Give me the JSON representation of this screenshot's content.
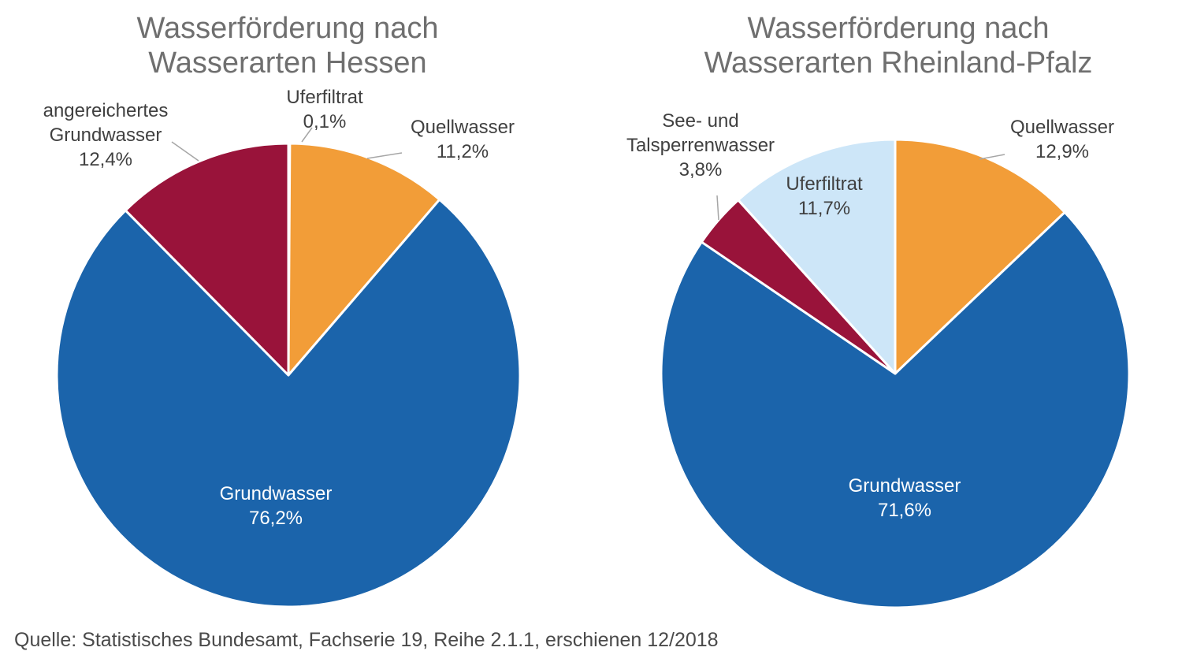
{
  "source_note": "Quelle: Statistisches Bundesamt, Fachserie 19, Reihe 2.1.1, erschienen 12/2018",
  "chart_data": [
    {
      "type": "pie",
      "title": [
        "Wasserförderung nach",
        "Wasserarten Hessen"
      ],
      "slices": [
        {
          "label": [
            "Uferfiltrat"
          ],
          "value": 0.1,
          "value_label": "0,1%",
          "color": "#F29D38"
        },
        {
          "label": [
            "Quellwasser"
          ],
          "value": 11.2,
          "value_label": "11,2%",
          "color": "#F29D38"
        },
        {
          "label": [
            "Grundwasser"
          ],
          "value": 76.2,
          "value_label": "76,2%",
          "color": "#1B64AB"
        },
        {
          "label": [
            "angereichertes",
            "Grundwasser"
          ],
          "value": 12.4,
          "value_label": "12,4%",
          "color": "#99133A"
        }
      ]
    },
    {
      "type": "pie",
      "title": [
        "Wasserförderung nach",
        "Wasserarten Rheinland-Pfalz"
      ],
      "slices": [
        {
          "label": [
            "Quellwasser"
          ],
          "value": 12.9,
          "value_label": "12,9%",
          "color": "#F29D38"
        },
        {
          "label": [
            "Grundwasser"
          ],
          "value": 71.6,
          "value_label": "71,6%",
          "color": "#1B64AB"
        },
        {
          "label": [
            "See- und",
            "Talsperrenwasser"
          ],
          "value": 3.8,
          "value_label": "3,8%",
          "color": "#99133A"
        },
        {
          "label": [
            "Uferfiltrat"
          ],
          "value": 11.7,
          "value_label": "11,7%",
          "color": "#CDE6F8"
        }
      ]
    }
  ]
}
